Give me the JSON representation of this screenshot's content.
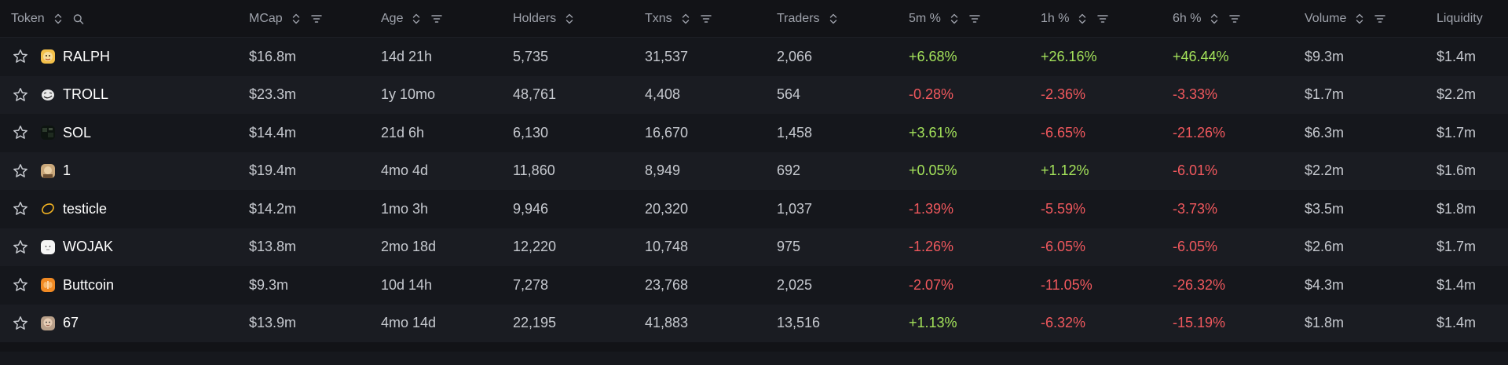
{
  "header": {
    "token": "Token",
    "mcap": "MCap",
    "age": "Age",
    "holders": "Holders",
    "txns": "Txns",
    "traders": "Traders",
    "change_5m": "5m %",
    "change_1h": "1h %",
    "change_6h": "6h %",
    "volume": "Volume",
    "liquidity": "Liquidity"
  },
  "colors": {
    "background": "#121317",
    "positive": "#a3e15a",
    "negative": "#f0585d",
    "header_text": "#9ea2ab"
  },
  "rows": [
    {
      "token": "RALPH",
      "logo": "ralph-logo",
      "mcap": "$16.8m",
      "age": "14d 21h",
      "holders": "5,735",
      "txns": "31,537",
      "traders": "2,066",
      "change_5m": "+6.68%",
      "change_1h": "+26.16%",
      "change_6h": "+46.44%",
      "volume": "$9.3m",
      "liquidity": "$1.4m"
    },
    {
      "token": "TROLL",
      "logo": "troll-logo",
      "mcap": "$23.3m",
      "age": "1y 10mo",
      "holders": "48,761",
      "txns": "4,408",
      "traders": "564",
      "change_5m": "-0.28%",
      "change_1h": "-2.36%",
      "change_6h": "-3.33%",
      "volume": "$1.7m",
      "liquidity": "$2.2m"
    },
    {
      "token": "SOL",
      "logo": "sol-logo",
      "mcap": "$14.4m",
      "age": "21d 6h",
      "holders": "6,130",
      "txns": "16,670",
      "traders": "1,458",
      "change_5m": "+3.61%",
      "change_1h": "-6.65%",
      "change_6h": "-21.26%",
      "volume": "$6.3m",
      "liquidity": "$1.7m"
    },
    {
      "token": "1",
      "logo": "one-logo",
      "mcap": "$19.4m",
      "age": "4mo 4d",
      "holders": "11,860",
      "txns": "8,949",
      "traders": "692",
      "change_5m": "+0.05%",
      "change_1h": "+1.12%",
      "change_6h": "-6.01%",
      "volume": "$2.2m",
      "liquidity": "$1.6m"
    },
    {
      "token": "testicle",
      "logo": "testicle-logo",
      "mcap": "$14.2m",
      "age": "1mo 3h",
      "holders": "9,946",
      "txns": "20,320",
      "traders": "1,037",
      "change_5m": "-1.39%",
      "change_1h": "-5.59%",
      "change_6h": "-3.73%",
      "volume": "$3.5m",
      "liquidity": "$1.8m"
    },
    {
      "token": "WOJAK",
      "logo": "wojak-logo",
      "mcap": "$13.8m",
      "age": "2mo 18d",
      "holders": "12,220",
      "txns": "10,748",
      "traders": "975",
      "change_5m": "-1.26%",
      "change_1h": "-6.05%",
      "change_6h": "-6.05%",
      "volume": "$2.6m",
      "liquidity": "$1.7m"
    },
    {
      "token": "Buttcoin",
      "logo": "buttcoin-logo",
      "mcap": "$9.3m",
      "age": "10d 14h",
      "holders": "7,278",
      "txns": "23,768",
      "traders": "2,025",
      "change_5m": "-2.07%",
      "change_1h": "-11.05%",
      "change_6h": "-26.32%",
      "volume": "$4.3m",
      "liquidity": "$1.4m"
    },
    {
      "token": "67",
      "logo": "sixty-seven-logo",
      "mcap": "$13.9m",
      "age": "4mo 14d",
      "holders": "22,195",
      "txns": "41,883",
      "traders": "13,516",
      "change_5m": "+1.13%",
      "change_1h": "-6.32%",
      "change_6h": "-15.19%",
      "volume": "$1.8m",
      "liquidity": "$1.4m"
    }
  ]
}
